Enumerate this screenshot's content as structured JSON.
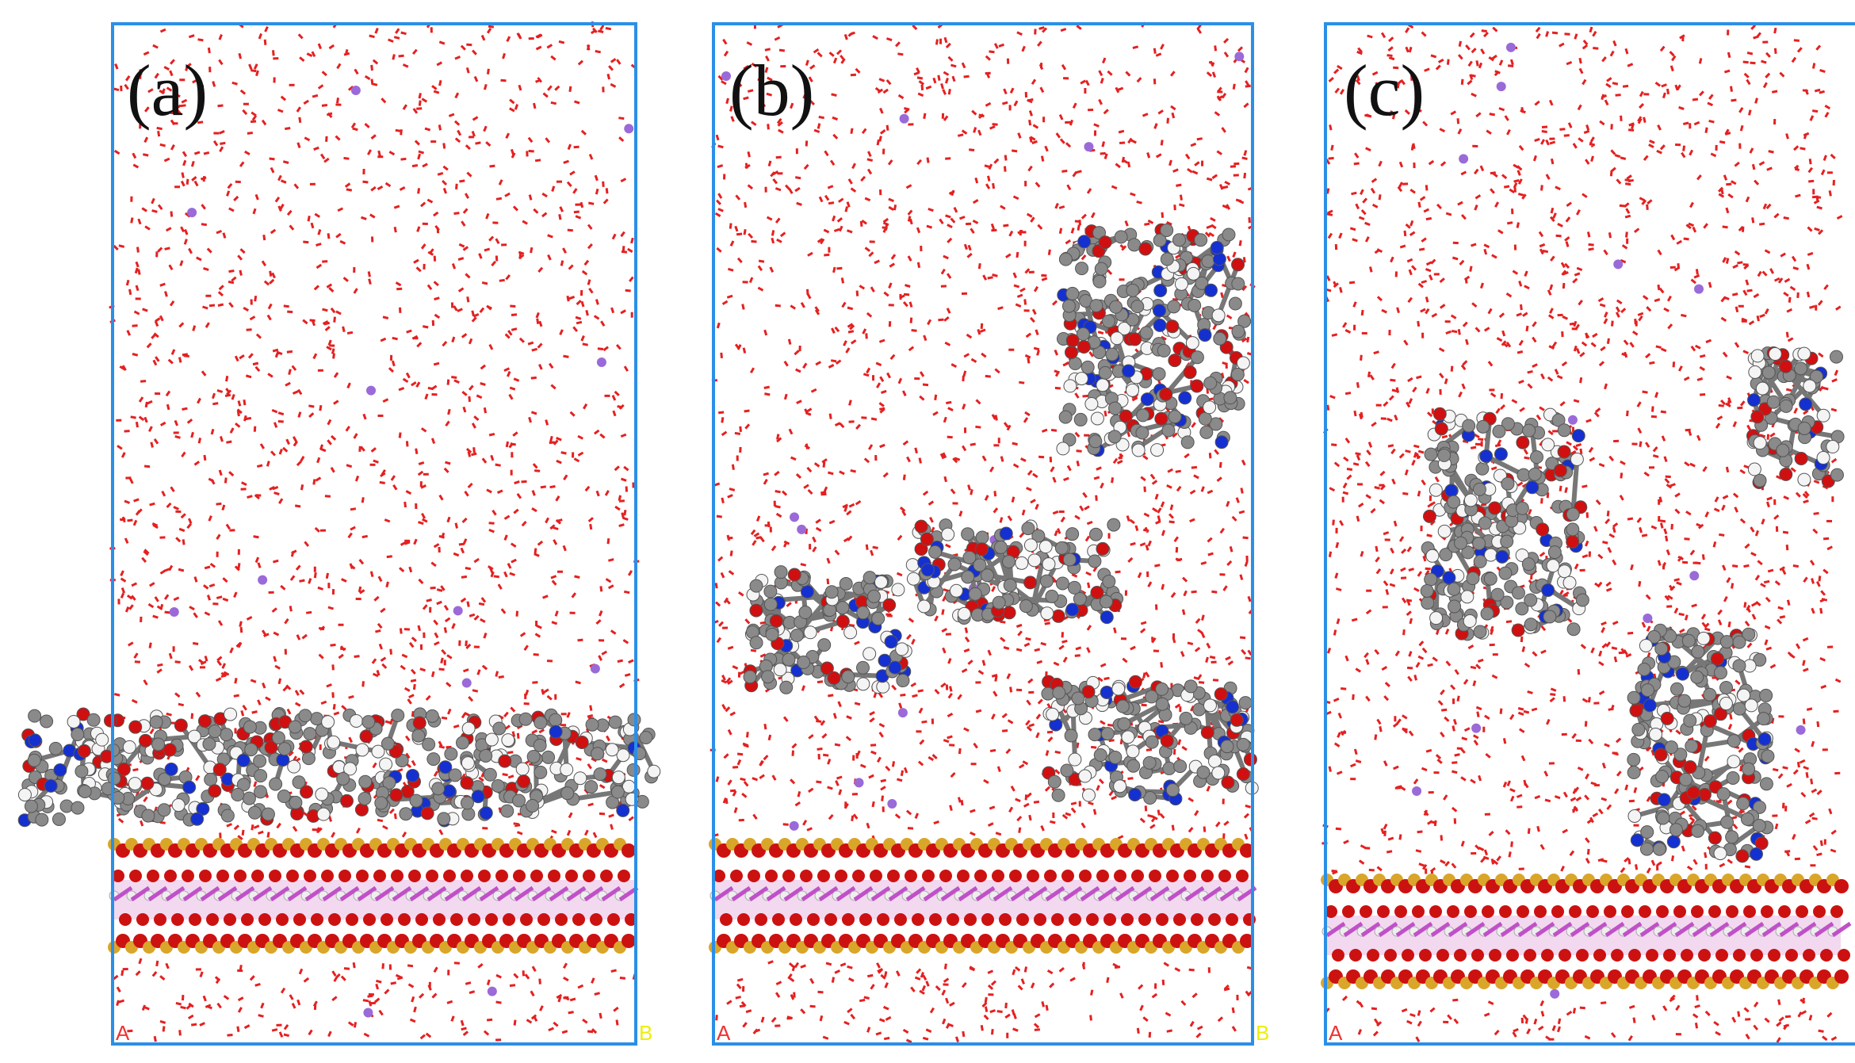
{
  "panels": [
    {
      "label": "(a)",
      "corner_labels": [
        "A",
        "B"
      ]
    },
    {
      "label": "(b)",
      "corner_labels": [
        "A",
        "B"
      ]
    },
    {
      "label": "(c)",
      "corner_labels": [
        "A"
      ]
    }
  ]
}
